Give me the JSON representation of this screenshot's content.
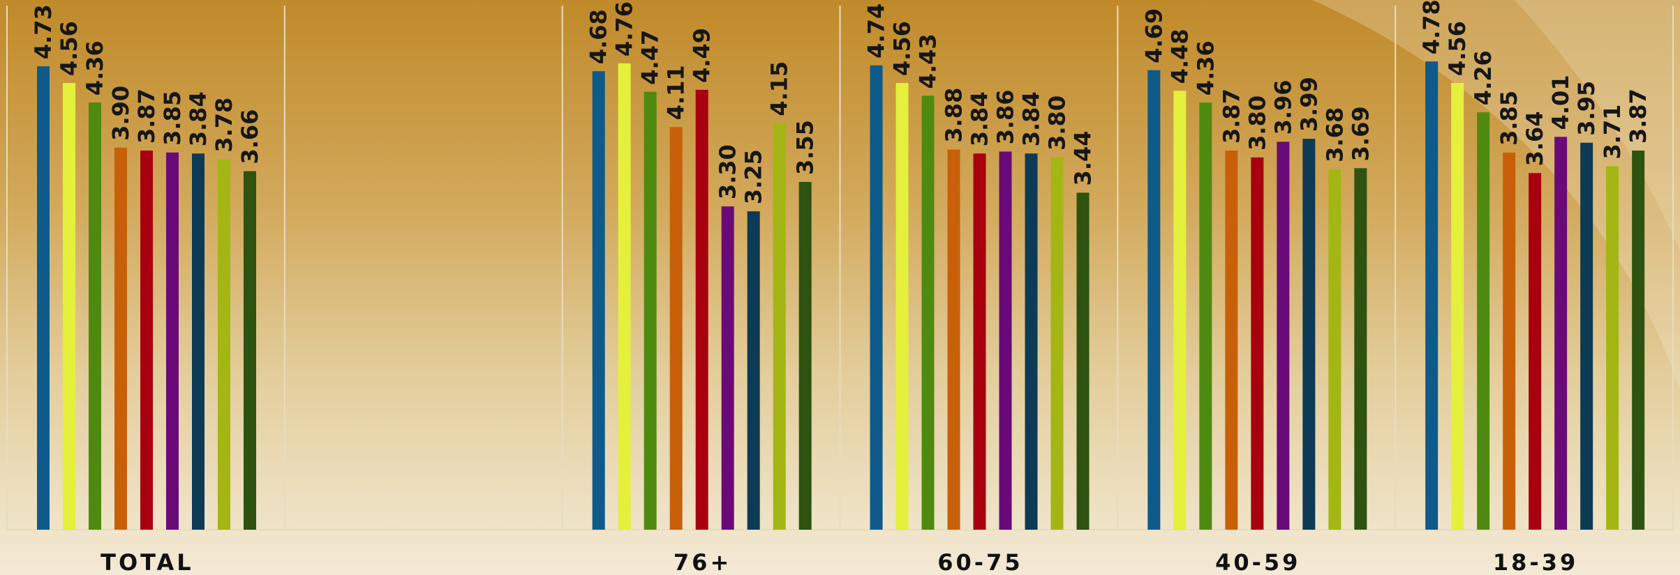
{
  "chart_data": {
    "type": "bar",
    "categories": [
      "TOTAL",
      "",
      "76+",
      "60-75",
      "40-59",
      "18-39"
    ],
    "series": [
      {
        "color": "#0e5a8a",
        "values": [
          4.73,
          null,
          4.68,
          4.74,
          4.69,
          4.78
        ]
      },
      {
        "color": "#e4f03c",
        "values": [
          4.56,
          null,
          4.76,
          4.56,
          4.48,
          4.56
        ]
      },
      {
        "color": "#4f8a10",
        "values": [
          4.36,
          null,
          4.47,
          4.43,
          4.36,
          4.26
        ]
      },
      {
        "color": "#c8600a",
        "values": [
          3.9,
          null,
          4.11,
          3.88,
          3.87,
          3.85
        ]
      },
      {
        "color": "#a8000e",
        "values": [
          3.87,
          null,
          4.49,
          3.84,
          3.8,
          3.64
        ]
      },
      {
        "color": "#6a0a78",
        "values": [
          3.85,
          null,
          3.3,
          3.86,
          3.96,
          4.01
        ]
      },
      {
        "color": "#0d3a55",
        "values": [
          3.84,
          null,
          3.25,
          3.84,
          3.99,
          3.95
        ]
      },
      {
        "color": "#a3b614",
        "values": [
          3.78,
          null,
          4.15,
          3.8,
          3.68,
          3.71
        ]
      },
      {
        "color": "#2e5210",
        "values": [
          3.66,
          null,
          3.55,
          3.44,
          3.69,
          3.87
        ]
      }
    ],
    "value_labels": [
      [
        "4.73",
        "4.56",
        "4.36",
        "3.90",
        "3.87",
        "3.85",
        "3.84",
        "3.78",
        "3.66"
      ],
      [],
      [
        "4.68",
        "4.76",
        "4.47",
        "4.11",
        "4.49",
        "3.30",
        "3.25",
        "4.15",
        "3.55"
      ],
      [
        "4.74",
        "4.56",
        "4.43",
        "3.88",
        "3.84",
        "3.86",
        "3.84",
        "3.80",
        "3.44"
      ],
      [
        "4.69",
        "4.48",
        "4.36",
        "3.87",
        "3.80",
        "3.96",
        "3.99",
        "3.68",
        "3.69"
      ],
      [
        "4.78",
        "4.56",
        "4.26",
        "3.85",
        "3.64",
        "4.01",
        "3.95",
        "3.71",
        "3.87"
      ]
    ],
    "ylim": [
      0,
      5.35
    ],
    "grid": "vertical separators between groups",
    "legend": "none"
  }
}
